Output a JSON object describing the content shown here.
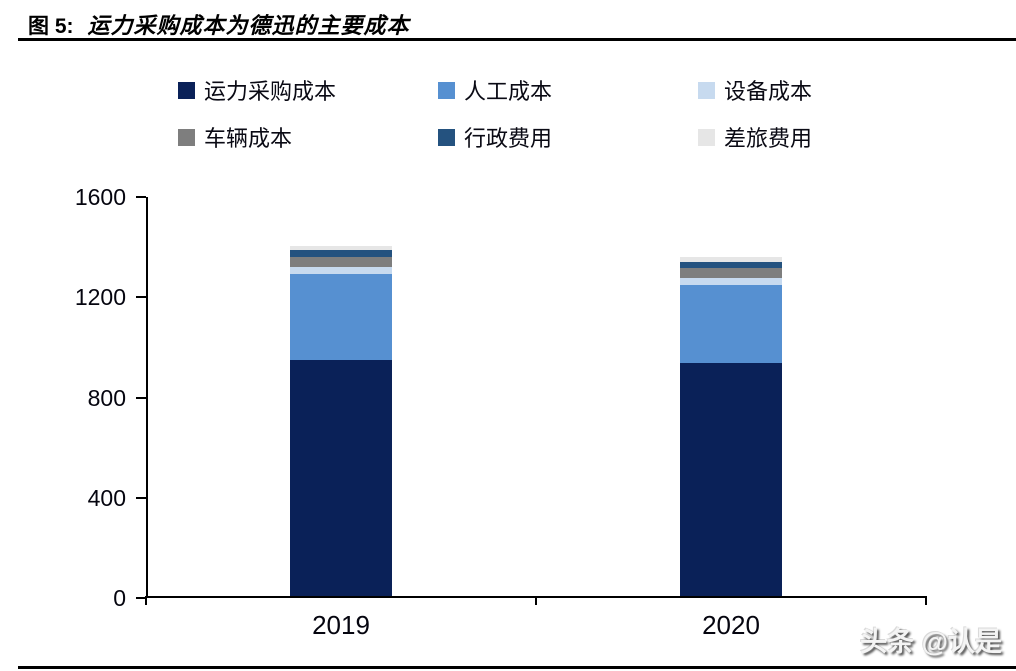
{
  "figure": {
    "label": "图 5:",
    "title": "运力采购成本为德迅的主要成本"
  },
  "watermark": "头条 @认是",
  "chart_data": {
    "type": "bar",
    "stacked": true,
    "title": "运力采购成本为德迅的主要成本",
    "categories": [
      "2019",
      "2020"
    ],
    "series": [
      {
        "name": "运力采购成本",
        "color": "#0A2158",
        "values": [
          940,
          930
        ]
      },
      {
        "name": "人工成本",
        "color": "#5690D1",
        "values": [
          345,
          310
        ]
      },
      {
        "name": "设备成本",
        "color": "#C7DAEF",
        "values": [
          27,
          27
        ]
      },
      {
        "name": "车辆成本",
        "color": "#7E7E7E",
        "values": [
          40,
          40
        ]
      },
      {
        "name": "行政费用",
        "color": "#24527F",
        "values": [
          27,
          27
        ]
      },
      {
        "name": "差旅费用",
        "color": "#E6E6E6",
        "values": [
          18,
          18
        ]
      }
    ],
    "totals": [
      1397,
      1352
    ],
    "xlabel": "",
    "ylabel": "",
    "ylim": [
      0,
      1600
    ],
    "yticks": [
      0,
      400,
      800,
      1200,
      1600
    ],
    "grid": false,
    "legend_position": "top",
    "legend_rows": [
      [
        "运力采购成本",
        "人工成本",
        "设备成本"
      ],
      [
        "车辆成本",
        "行政费用",
        "差旅费用"
      ]
    ]
  }
}
